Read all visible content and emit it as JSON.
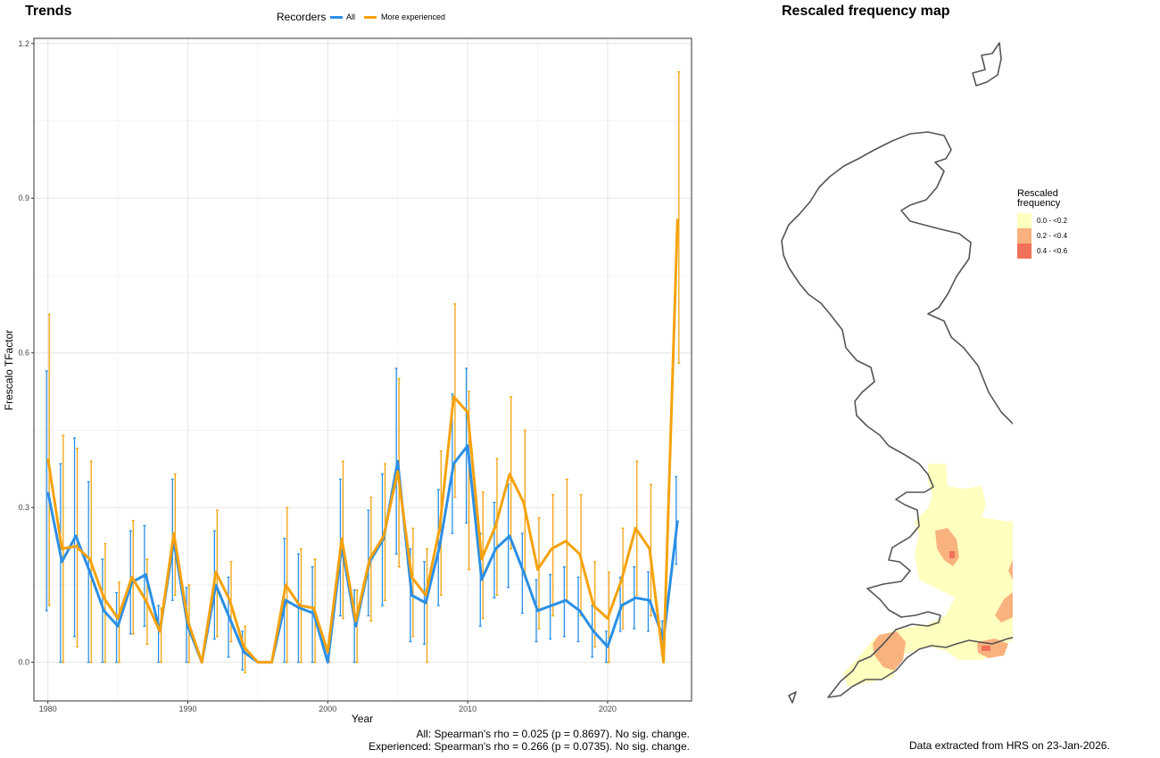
{
  "left_panel": {
    "title": "Trends",
    "legend": {
      "title": "Recorders",
      "items": [
        {
          "label": "All",
          "color": "#2b8fe6"
        },
        {
          "label": "More experienced",
          "color": "#f5a20c"
        }
      ]
    },
    "stats": {
      "all": "All: Spearman's rho = 0.025 (p = 0.8697). No sig. change.",
      "experienced": "Experienced: Spearman's rho = 0.266 (p = 0.0735). No sig. change."
    }
  },
  "chart_data": {
    "type": "line",
    "xlabel": "Year",
    "ylabel": "Frescalo TFactor",
    "xlim": [
      1979,
      2026
    ],
    "ylim": [
      -0.075,
      1.21
    ],
    "x_ticks": [
      1980,
      1990,
      2000,
      2010,
      2020
    ],
    "y_ticks": [
      "0.0",
      "0.3",
      "0.6",
      "0.9",
      "1.2"
    ],
    "y_tick_values": [
      0,
      0.3,
      0.6,
      0.9,
      1.2
    ],
    "grid": true,
    "legend_position": "top",
    "series": [
      {
        "name": "All",
        "color": "#2b8fe6",
        "points": [
          {
            "x": 1980,
            "y": 0.33,
            "lo": 0.1,
            "hi": 0.565
          },
          {
            "x": 1981,
            "y": 0.195,
            "lo": 0.0,
            "hi": 0.385
          },
          {
            "x": 1982,
            "y": 0.245,
            "lo": 0.05,
            "hi": 0.435
          },
          {
            "x": 1983,
            "y": 0.175,
            "lo": 0.0,
            "hi": 0.35
          },
          {
            "x": 1984,
            "y": 0.1,
            "lo": 0.0,
            "hi": 0.2
          },
          {
            "x": 1985,
            "y": 0.07,
            "lo": 0.0,
            "hi": 0.135
          },
          {
            "x": 1986,
            "y": 0.155,
            "lo": 0.055,
            "hi": 0.255
          },
          {
            "x": 1987,
            "y": 0.17,
            "lo": 0.07,
            "hi": 0.265
          },
          {
            "x": 1988,
            "y": 0.06,
            "lo": 0.0,
            "hi": 0.11
          },
          {
            "x": 1989,
            "y": 0.235,
            "lo": 0.12,
            "hi": 0.355
          },
          {
            "x": 1990,
            "y": 0.07,
            "lo": 0.0,
            "hi": 0.145
          },
          {
            "x": 1991,
            "y": 0.0,
            "lo": 0.0,
            "hi": 0.0
          },
          {
            "x": 1992,
            "y": 0.15,
            "lo": 0.045,
            "hi": 0.255
          },
          {
            "x": 1993,
            "y": 0.085,
            "lo": 0.01,
            "hi": 0.165
          },
          {
            "x": 1994,
            "y": 0.02,
            "lo": -0.015,
            "hi": 0.06
          },
          {
            "x": 1995,
            "y": 0.0,
            "lo": 0.0,
            "hi": 0.0
          },
          {
            "x": 1996,
            "y": 0.0,
            "lo": 0.0,
            "hi": 0.0
          },
          {
            "x": 1997,
            "y": 0.12,
            "lo": 0.0,
            "hi": 0.24
          },
          {
            "x": 1998,
            "y": 0.105,
            "lo": 0.0,
            "hi": 0.21
          },
          {
            "x": 1999,
            "y": 0.095,
            "lo": 0.0,
            "hi": 0.185
          },
          {
            "x": 2000,
            "y": 0.0,
            "lo": 0.0,
            "hi": 0.0
          },
          {
            "x": 2001,
            "y": 0.225,
            "lo": 0.09,
            "hi": 0.355
          },
          {
            "x": 2002,
            "y": 0.07,
            "lo": 0.0,
            "hi": 0.14
          },
          {
            "x": 2003,
            "y": 0.195,
            "lo": 0.09,
            "hi": 0.295
          },
          {
            "x": 2004,
            "y": 0.24,
            "lo": 0.11,
            "hi": 0.365
          },
          {
            "x": 2005,
            "y": 0.39,
            "lo": 0.21,
            "hi": 0.57
          },
          {
            "x": 2006,
            "y": 0.13,
            "lo": 0.04,
            "hi": 0.22
          },
          {
            "x": 2007,
            "y": 0.115,
            "lo": 0.035,
            "hi": 0.195
          },
          {
            "x": 2008,
            "y": 0.225,
            "lo": 0.11,
            "hi": 0.335
          },
          {
            "x": 2009,
            "y": 0.385,
            "lo": 0.25,
            "hi": 0.52
          },
          {
            "x": 2010,
            "y": 0.42,
            "lo": 0.27,
            "hi": 0.57
          },
          {
            "x": 2011,
            "y": 0.16,
            "lo": 0.07,
            "hi": 0.25
          },
          {
            "x": 2012,
            "y": 0.22,
            "lo": 0.125,
            "hi": 0.31
          },
          {
            "x": 2013,
            "y": 0.245,
            "lo": 0.145,
            "hi": 0.345
          },
          {
            "x": 2014,
            "y": 0.175,
            "lo": 0.095,
            "hi": 0.25
          },
          {
            "x": 2015,
            "y": 0.1,
            "lo": 0.04,
            "hi": 0.16
          },
          {
            "x": 2016,
            "y": 0.11,
            "lo": 0.045,
            "hi": 0.17
          },
          {
            "x": 2017,
            "y": 0.12,
            "lo": 0.05,
            "hi": 0.185
          },
          {
            "x": 2018,
            "y": 0.1,
            "lo": 0.04,
            "hi": 0.165
          },
          {
            "x": 2019,
            "y": 0.06,
            "lo": 0.01,
            "hi": 0.11
          },
          {
            "x": 2020,
            "y": 0.03,
            "lo": 0.0,
            "hi": 0.06
          },
          {
            "x": 2021,
            "y": 0.11,
            "lo": 0.06,
            "hi": 0.165
          },
          {
            "x": 2022,
            "y": 0.125,
            "lo": 0.065,
            "hi": 0.185
          },
          {
            "x": 2023,
            "y": 0.12,
            "lo": 0.06,
            "hi": 0.175
          },
          {
            "x": 2024,
            "y": 0.045,
            "lo": 0.015,
            "hi": 0.08
          },
          {
            "x": 2025,
            "y": 0.275,
            "lo": 0.19,
            "hi": 0.36
          }
        ]
      },
      {
        "name": "More experienced",
        "color": "#f5a20c",
        "points": [
          {
            "x": 1980,
            "y": 0.395,
            "lo": 0.11,
            "hi": 0.675
          },
          {
            "x": 1981,
            "y": 0.22,
            "lo": 0.0,
            "hi": 0.44
          },
          {
            "x": 1982,
            "y": 0.225,
            "lo": 0.03,
            "hi": 0.415
          },
          {
            "x": 1983,
            "y": 0.2,
            "lo": 0.0,
            "hi": 0.39
          },
          {
            "x": 1984,
            "y": 0.125,
            "lo": 0.0,
            "hi": 0.23
          },
          {
            "x": 1985,
            "y": 0.085,
            "lo": 0.0,
            "hi": 0.155
          },
          {
            "x": 1986,
            "y": 0.165,
            "lo": 0.055,
            "hi": 0.275
          },
          {
            "x": 1987,
            "y": 0.12,
            "lo": 0.035,
            "hi": 0.2
          },
          {
            "x": 1988,
            "y": 0.06,
            "lo": 0.0,
            "hi": 0.105
          },
          {
            "x": 1989,
            "y": 0.25,
            "lo": 0.13,
            "hi": 0.365
          },
          {
            "x": 1990,
            "y": 0.08,
            "lo": 0.0,
            "hi": 0.15
          },
          {
            "x": 1991,
            "y": 0.0,
            "lo": 0.0,
            "hi": 0.0
          },
          {
            "x": 1992,
            "y": 0.175,
            "lo": 0.05,
            "hi": 0.295
          },
          {
            "x": 1993,
            "y": 0.12,
            "lo": 0.04,
            "hi": 0.195
          },
          {
            "x": 1994,
            "y": 0.03,
            "lo": -0.02,
            "hi": 0.07
          },
          {
            "x": 1995,
            "y": 0.0,
            "lo": 0.0,
            "hi": 0.0
          },
          {
            "x": 1996,
            "y": 0.0,
            "lo": 0.0,
            "hi": 0.0
          },
          {
            "x": 1997,
            "y": 0.15,
            "lo": 0.0,
            "hi": 0.3
          },
          {
            "x": 1998,
            "y": 0.11,
            "lo": 0.0,
            "hi": 0.22
          },
          {
            "x": 1999,
            "y": 0.105,
            "lo": 0.0,
            "hi": 0.2
          },
          {
            "x": 2000,
            "y": 0.02,
            "lo": 0.0,
            "hi": 0.035
          },
          {
            "x": 2001,
            "y": 0.24,
            "lo": 0.085,
            "hi": 0.39
          },
          {
            "x": 2002,
            "y": 0.08,
            "lo": 0.0,
            "hi": 0.14
          },
          {
            "x": 2003,
            "y": 0.2,
            "lo": 0.08,
            "hi": 0.32
          },
          {
            "x": 2004,
            "y": 0.245,
            "lo": 0.12,
            "hi": 0.385
          },
          {
            "x": 2005,
            "y": 0.37,
            "lo": 0.185,
            "hi": 0.55
          },
          {
            "x": 2006,
            "y": 0.165,
            "lo": 0.05,
            "hi": 0.26
          },
          {
            "x": 2007,
            "y": 0.13,
            "lo": 0.0,
            "hi": 0.22
          },
          {
            "x": 2008,
            "y": 0.26,
            "lo": 0.13,
            "hi": 0.41
          },
          {
            "x": 2009,
            "y": 0.515,
            "lo": 0.32,
            "hi": 0.695
          },
          {
            "x": 2010,
            "y": 0.485,
            "lo": 0.18,
            "hi": 0.525
          },
          {
            "x": 2011,
            "y": 0.2,
            "lo": 0.085,
            "hi": 0.33
          },
          {
            "x": 2012,
            "y": 0.265,
            "lo": 0.13,
            "hi": 0.395
          },
          {
            "x": 2013,
            "y": 0.365,
            "lo": 0.22,
            "hi": 0.515
          },
          {
            "x": 2014,
            "y": 0.31,
            "lo": 0.17,
            "hi": 0.45
          },
          {
            "x": 2015,
            "y": 0.18,
            "lo": 0.065,
            "hi": 0.28
          },
          {
            "x": 2016,
            "y": 0.22,
            "lo": 0.09,
            "hi": 0.325
          },
          {
            "x": 2017,
            "y": 0.235,
            "lo": 0.12,
            "hi": 0.355
          },
          {
            "x": 2018,
            "y": 0.21,
            "lo": 0.09,
            "hi": 0.325
          },
          {
            "x": 2019,
            "y": 0.11,
            "lo": 0.03,
            "hi": 0.195
          },
          {
            "x": 2020,
            "y": 0.085,
            "lo": 0.0,
            "hi": 0.175
          },
          {
            "x": 2021,
            "y": 0.16,
            "lo": 0.065,
            "hi": 0.26
          },
          {
            "x": 2022,
            "y": 0.26,
            "lo": 0.13,
            "hi": 0.39
          },
          {
            "x": 2023,
            "y": 0.22,
            "lo": 0.09,
            "hi": 0.345
          },
          {
            "x": 2024,
            "y": 0.0,
            "lo": 0.0,
            "hi": 0.0
          },
          {
            "x": 2025,
            "y": 0.86,
            "lo": 0.58,
            "hi": 1.145
          }
        ]
      }
    ]
  },
  "right_panel": {
    "title": "Rescaled frequency map",
    "legend": {
      "title": "Rescaled frequency",
      "items": [
        {
          "label": "0.0 - <0.2",
          "color": "#ffffc0"
        },
        {
          "label": "0.2 - <0.4",
          "color": "#f9b27d"
        },
        {
          "label": "0.4 - <0.6",
          "color": "#f2715a"
        }
      ]
    },
    "footer": "Data extracted from HRS on 23-Jan-2026.",
    "outline_color": "#555555"
  }
}
